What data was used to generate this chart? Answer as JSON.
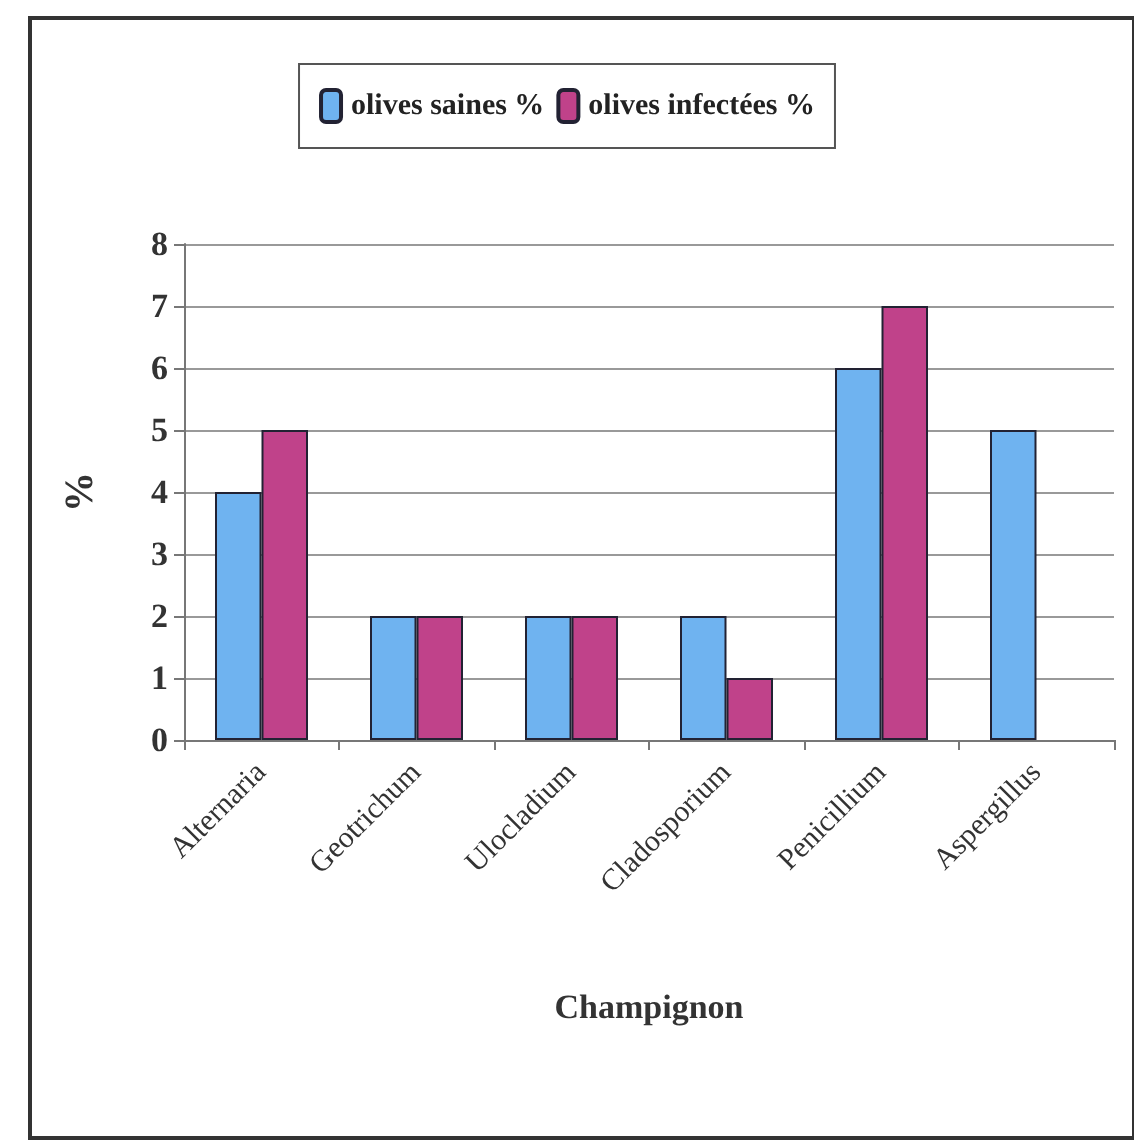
{
  "chart_data": {
    "type": "bar",
    "xlabel": "Champignon",
    "ylabel": "%",
    "categories": [
      "Alternaria",
      "Geotrichum",
      "Ulocladium",
      "Cladosporium",
      "Penicillium",
      "Aspergillus"
    ],
    "series": [
      {
        "name": "olives saines %",
        "color": "#6fb3f0",
        "values": [
          4,
          2,
          2,
          2,
          6,
          5
        ]
      },
      {
        "name": "olives infectées %",
        "color": "#c0428a",
        "values": [
          5,
          2,
          2,
          1,
          7,
          null
        ]
      }
    ],
    "ylim": [
      0,
      8
    ],
    "yticks": [
      0,
      1,
      2,
      3,
      4,
      5,
      6,
      7,
      8
    ],
    "grid": "y",
    "legend": "top"
  }
}
